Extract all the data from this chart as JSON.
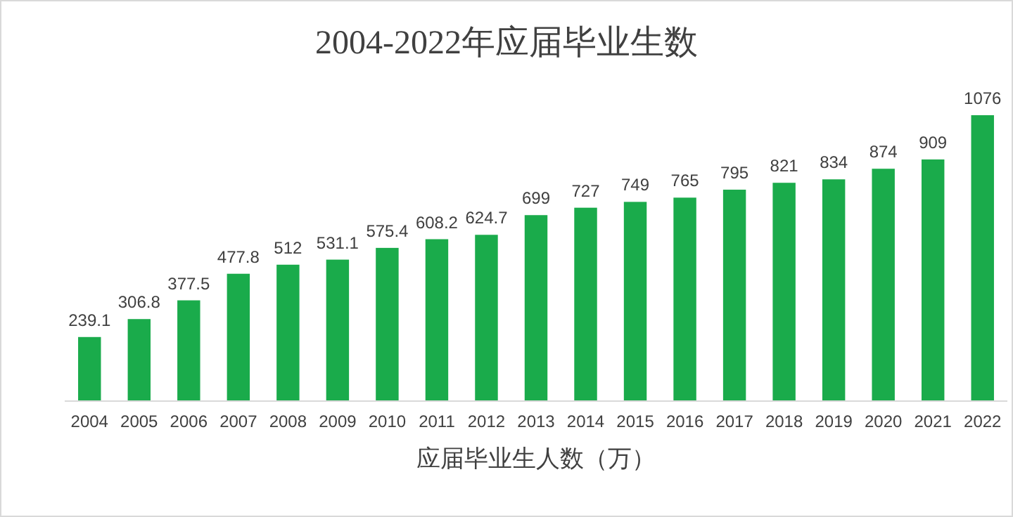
{
  "chart_data": {
    "type": "bar",
    "title": "2004-2022年应届毕业生数",
    "xlabel": "应届毕业生人数（万）",
    "categories": [
      "2004",
      "2005",
      "2006",
      "2007",
      "2008",
      "2009",
      "2010",
      "2011",
      "2012",
      "2013",
      "2014",
      "2015",
      "2016",
      "2017",
      "2018",
      "2019",
      "2020",
      "2021",
      "2022"
    ],
    "values": [
      239.1,
      306.8,
      377.5,
      477.8,
      512,
      531.1,
      575.4,
      608.2,
      624.7,
      699,
      727,
      749,
      765,
      795,
      821,
      834,
      874,
      909,
      1076
    ],
    "color": "#1aab4b",
    "data_labels": true
  }
}
